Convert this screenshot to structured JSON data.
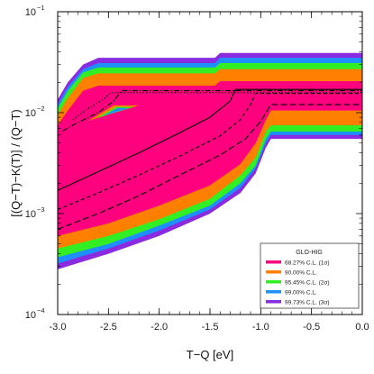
{
  "chart_data": {
    "type": "area",
    "title": "",
    "xlabel": "T−Q   [eV]",
    "ylabel": "[(Q−T)−K(T)] / (Q−T)",
    "xlim": [
      -3.0,
      0.0
    ],
    "ylim": [
      0.0001,
      0.1
    ],
    "yscale": "log",
    "grid": false,
    "x_ticks": [
      "-3.0",
      "-2.5",
      "-2.0",
      "-1.5",
      "-1.0",
      "-0.5",
      "0.0"
    ],
    "y_ticks": [
      {
        "base": "10",
        "exp": "−1",
        "value": 0.1
      },
      {
        "base": "10",
        "exp": "−2",
        "value": 0.01
      },
      {
        "base": "10",
        "exp": "−3",
        "value": 0.001
      },
      {
        "base": "10",
        "exp": "−4",
        "value": 0.0001
      }
    ],
    "legend": {
      "title": "GLO-HIG",
      "position": "bottom-right",
      "entries": [
        {
          "label": "68.27% C.L. (1σ)",
          "color": "#ff007f"
        },
        {
          "label": "90.00% C.L.",
          "color": "#ff8000"
        },
        {
          "label": "95.45% C.L. (2σ)",
          "color": "#33ee22"
        },
        {
          "label": "99.00% C.L.",
          "color": "#1e8fff"
        },
        {
          "label": "99.73% C.L. (3σ)",
          "color": "#8a2be2"
        }
      ]
    },
    "series": [
      {
        "name": "99.73% C.L. (3σ)",
        "color": "#8a2be2",
        "upper": [
          [
            -3.0,
            0.0135
          ],
          [
            -2.9,
            0.02
          ],
          [
            -2.75,
            0.03
          ],
          [
            -2.6,
            0.035
          ],
          [
            -1.45,
            0.035
          ],
          [
            -1.4,
            0.039
          ],
          [
            0.0,
            0.039
          ]
        ],
        "lower": [
          [
            -3.0,
            0.00028
          ],
          [
            -2.5,
            0.0004
          ],
          [
            -2.0,
            0.0006
          ],
          [
            -1.5,
            0.001
          ],
          [
            -1.2,
            0.0016
          ],
          [
            -1.05,
            0.0025
          ],
          [
            -0.95,
            0.0045
          ],
          [
            -0.9,
            0.0055
          ],
          [
            0.0,
            0.0055
          ]
        ]
      },
      {
        "name": "99.00% C.L.",
        "color": "#1e8fff",
        "upper": [
          [
            -3.0,
            0.012
          ],
          [
            -2.9,
            0.018
          ],
          [
            -2.75,
            0.027
          ],
          [
            -2.6,
            0.031
          ],
          [
            -1.45,
            0.031
          ],
          [
            -1.4,
            0.035
          ],
          [
            0.0,
            0.035
          ]
        ],
        "lower": [
          [
            -3.0,
            0.00032
          ],
          [
            -2.5,
            0.00045
          ],
          [
            -2.0,
            0.00068
          ],
          [
            -1.5,
            0.0011
          ],
          [
            -1.2,
            0.0018
          ],
          [
            -1.05,
            0.0028
          ],
          [
            -0.95,
            0.005
          ],
          [
            -0.9,
            0.006
          ],
          [
            0.0,
            0.006
          ]
        ]
      },
      {
        "name": "95.45% C.L. (2σ)",
        "color": "#33ee22",
        "upper": [
          [
            -3.0,
            0.011
          ],
          [
            -2.9,
            0.0165
          ],
          [
            -2.75,
            0.025
          ],
          [
            -2.6,
            0.028
          ],
          [
            -1.45,
            0.028
          ],
          [
            -1.4,
            0.031
          ],
          [
            0.0,
            0.031
          ]
        ],
        "lower": [
          [
            -3.0,
            0.00037
          ],
          [
            -2.5,
            0.0005
          ],
          [
            -2.0,
            0.00076
          ],
          [
            -1.5,
            0.0012
          ],
          [
            -1.2,
            0.002
          ],
          [
            -1.05,
            0.003
          ],
          [
            -0.95,
            0.0055
          ],
          [
            -0.9,
            0.0065
          ],
          [
            0.0,
            0.0065
          ]
        ]
      },
      {
        "name": "90.00% C.L.",
        "color": "#ff8000",
        "upper": [
          [
            -3.0,
            0.0095
          ],
          [
            -2.9,
            0.014
          ],
          [
            -2.75,
            0.022
          ],
          [
            -2.6,
            0.0245
          ],
          [
            -1.45,
            0.0245
          ],
          [
            -1.4,
            0.027
          ],
          [
            0.0,
            0.027
          ]
        ],
        "lower": [
          [
            -3.0,
            0.00045
          ],
          [
            -2.5,
            0.0006
          ],
          [
            -2.0,
            0.00088
          ],
          [
            -1.5,
            0.0014
          ],
          [
            -1.2,
            0.0024
          ],
          [
            -1.05,
            0.0036
          ],
          [
            -0.95,
            0.0065
          ],
          [
            -0.9,
            0.0075
          ],
          [
            0.0,
            0.0075
          ]
        ]
      },
      {
        "name": "68.27% C.L. (1σ)",
        "color": "#ff007f",
        "upper": [
          [
            -3.0,
            0.0075
          ],
          [
            -2.9,
            0.0105
          ],
          [
            -2.75,
            0.0165
          ],
          [
            -2.6,
            0.0185
          ],
          [
            -1.45,
            0.0185
          ],
          [
            -1.4,
            0.0205
          ],
          [
            0.0,
            0.0205
          ]
        ],
        "lower": [
          [
            -3.0,
            0.0006
          ],
          [
            -2.5,
            0.0008
          ],
          [
            -2.0,
            0.0012
          ],
          [
            -1.5,
            0.0019
          ],
          [
            -1.2,
            0.0031
          ],
          [
            -1.05,
            0.005
          ],
          [
            -0.95,
            0.0085
          ],
          [
            -0.9,
            0.0105
          ],
          [
            0.0,
            0.0105
          ]
        ]
      }
    ],
    "holes": [
      {
        "color": "#ff8000",
        "points": [
          [
            -2.7,
            0.0083
          ],
          [
            -2.45,
            0.0118
          ],
          [
            -2.2,
            0.0118
          ]
        ]
      },
      {
        "color": "#33ee22",
        "points": [
          [
            -2.62,
            0.0088
          ],
          [
            -2.42,
            0.0114
          ],
          [
            -2.25,
            0.0114
          ]
        ]
      },
      {
        "color": "#1e8fff",
        "points": [
          [
            -2.55,
            0.0093
          ],
          [
            -2.41,
            0.0111
          ],
          [
            -2.3,
            0.0111
          ]
        ]
      }
    ],
    "lines": [
      {
        "style": "solid",
        "points": [
          [
            -3.0,
            0.0017
          ],
          [
            -2.6,
            0.0026
          ],
          [
            -2.2,
            0.004
          ],
          [
            -1.8,
            0.0063
          ],
          [
            -1.5,
            0.009
          ],
          [
            -1.3,
            0.013
          ],
          [
            -1.25,
            0.017
          ],
          [
            0.0,
            0.017
          ]
        ]
      },
      {
        "style": "dashed",
        "points": [
          [
            -3.0,
            0.0011
          ],
          [
            -2.6,
            0.0016
          ],
          [
            -2.2,
            0.0024
          ],
          [
            -1.8,
            0.0037
          ],
          [
            -1.4,
            0.0059
          ],
          [
            -1.2,
            0.0085
          ],
          [
            -1.1,
            0.012
          ],
          [
            -1.05,
            0.0155
          ],
          [
            0.0,
            0.0155
          ]
        ]
      },
      {
        "style": "longdash",
        "points": [
          [
            -3.0,
            0.0007
          ],
          [
            -2.6,
            0.001
          ],
          [
            -2.2,
            0.0015
          ],
          [
            -1.8,
            0.0024
          ],
          [
            -1.4,
            0.0038
          ],
          [
            -1.15,
            0.0055
          ],
          [
            -1.0,
            0.0082
          ],
          [
            -0.9,
            0.012
          ],
          [
            0.0,
            0.012
          ]
        ]
      },
      {
        "style": "dashdot",
        "points": [
          [
            -2.95,
            0.0066
          ],
          [
            -2.8,
            0.008
          ],
          [
            -2.6,
            0.01
          ],
          [
            -2.45,
            0.013
          ],
          [
            -2.37,
            0.0165
          ],
          [
            0.0,
            0.0165
          ]
        ]
      },
      {
        "style": "dotted",
        "points": [
          [
            -2.85,
            0.0085
          ],
          [
            -2.7,
            0.011
          ],
          [
            -2.55,
            0.0135
          ],
          [
            -2.48,
            0.0158
          ],
          [
            0.0,
            0.0158
          ]
        ]
      }
    ]
  }
}
